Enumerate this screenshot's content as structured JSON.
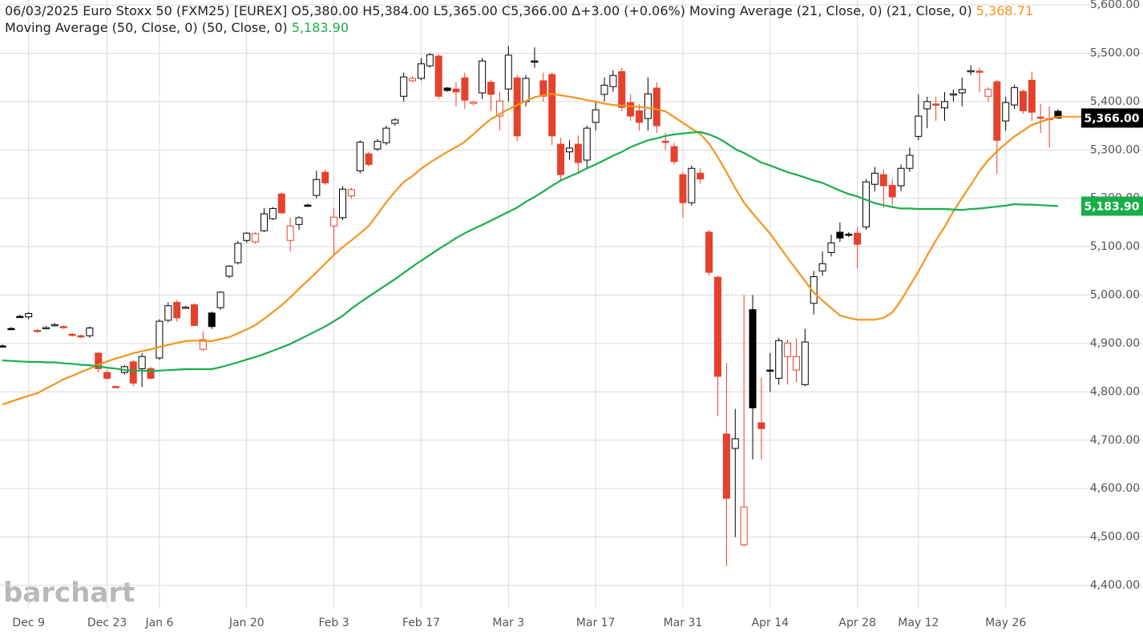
{
  "chart_data": {
    "type": "candlestick",
    "title": "06/03/2025 Euro Stoxx 50 (FXM25) [EUREX]",
    "ohlc_summary": "O5,380.00 H5,384.00 L5,365.00 C5,366.00 ∆+3.00 (+0.06%)",
    "watermark": "barchart",
    "up_color": "#000000",
    "down_color": "#e5412d",
    "last_close_label": "5,366.00",
    "grid": true,
    "categories": [
      null,
      null,
      null,
      "Dec 9",
      null,
      null,
      null,
      null,
      null,
      null,
      null,
      null,
      "Dec 23",
      null,
      null,
      null,
      null,
      null,
      "Jan 6",
      null,
      null,
      null,
      null,
      null,
      null,
      null,
      null,
      null,
      "Jan 20",
      null,
      null,
      null,
      null,
      null,
      null,
      null,
      null,
      null,
      "Feb 3",
      null,
      null,
      null,
      null,
      null,
      null,
      null,
      null,
      null,
      "Feb 17",
      null,
      null,
      null,
      null,
      null,
      null,
      null,
      null,
      null,
      "Mar 3",
      null,
      null,
      null,
      null,
      null,
      null,
      null,
      null,
      null,
      "Mar 17",
      null,
      null,
      null,
      null,
      null,
      null,
      null,
      null,
      null,
      "Mar 31",
      null,
      null,
      null,
      null,
      null,
      null,
      null,
      null,
      null,
      "Apr 14",
      null,
      null,
      null,
      null,
      null,
      null,
      null,
      null,
      null,
      "Apr 28",
      null,
      null,
      null,
      null,
      null,
      null,
      "May 12",
      null,
      null,
      null,
      null,
      null,
      null,
      null,
      null,
      null,
      "May 26",
      null,
      null,
      null,
      null,
      null,
      null
    ],
    "open": [
      4895,
      4931,
      4956,
      4955,
      4927,
      4932,
      4938,
      4935,
      4919,
      4916,
      4916,
      4880,
      4840,
      4811,
      4840,
      4862,
      4848,
      4848,
      4870,
      4948,
      4985,
      4974,
      4980,
      4888,
      4963,
      4974,
      5039,
      5067,
      5113,
      5110,
      5133,
      5158,
      5209,
      5113,
      5146,
      5186,
      5206,
      5254,
      5143,
      5160,
      5205,
      5257,
      5292,
      5302,
      5315,
      5355,
      5411,
      5443,
      5448,
      5474,
      5494,
      5428,
      5426,
      5449,
      5396,
      5418,
      5440,
      5370,
      5426,
      5449,
      5400,
      5484,
      5443,
      5456,
      5312,
      5296,
      5312,
      5279,
      5357,
      5415,
      5431,
      5462,
      5398,
      5381,
      5365,
      5428,
      5318,
      5307,
      5249,
      5191,
      5252,
      5130,
      5037,
      4713,
      4683,
      4484,
      4970,
      4736,
      4845,
      4828,
      4873,
      4845,
      4815,
      4983,
      5050,
      5088,
      5130,
      5126,
      5128,
      5141,
      5229,
      5249,
      5227,
      5226,
      5262,
      5328,
      5385,
      5395,
      5387,
      5414,
      5418,
      5462,
      5463,
      5411,
      5441,
      5360,
      5393,
      5421,
      5444,
      5368,
      5365,
      5380
    ],
    "high": [
      4898,
      4934,
      4959,
      4965,
      4930,
      4936,
      4942,
      4938,
      4922,
      4919,
      4935,
      4882,
      4845,
      4813,
      4855,
      4866,
      4880,
      4852,
      4950,
      4985,
      4990,
      4978,
      4983,
      4925,
      4966,
      5008,
      5062,
      5112,
      5130,
      5130,
      5180,
      5182,
      5212,
      5160,
      5163,
      5189,
      5257,
      5260,
      5180,
      5225,
      5222,
      5320,
      5296,
      5322,
      5350,
      5366,
      5460,
      5452,
      5490,
      5500,
      5498,
      5430,
      5440,
      5460,
      5402,
      5490,
      5445,
      5420,
      5515,
      5455,
      5455,
      5512,
      5460,
      5460,
      5325,
      5320,
      5330,
      5350,
      5400,
      5450,
      5465,
      5470,
      5415,
      5395,
      5450,
      5440,
      5335,
      5315,
      5255,
      5268,
      5262,
      5135,
      5040,
      4860,
      4765,
      5000,
      5000,
      4830,
      4880,
      4912,
      4908,
      4910,
      4930,
      5050,
      5090,
      5125,
      5150,
      5130,
      5140,
      5240,
      5265,
      5260,
      5240,
      5270,
      5305,
      5415,
      5410,
      5410,
      5420,
      5425,
      5450,
      5475,
      5470,
      5430,
      5445,
      5410,
      5435,
      5425,
      5462,
      5395,
      5390,
      5384
    ],
    "low": [
      4892,
      4928,
      4953,
      4950,
      4922,
      4929,
      4935,
      4930,
      4914,
      4911,
      4912,
      4840,
      4825,
      4808,
      4836,
      4812,
      4810,
      4826,
      4866,
      4944,
      4945,
      4972,
      4936,
      4884,
      4930,
      4970,
      5035,
      5063,
      5108,
      5106,
      5130,
      5155,
      5168,
      5090,
      5135,
      5183,
      5200,
      5228,
      5080,
      5155,
      5200,
      5252,
      5266,
      5298,
      5310,
      5350,
      5400,
      5440,
      5444,
      5470,
      5405,
      5420,
      5390,
      5385,
      5392,
      5405,
      5380,
      5340,
      5400,
      5318,
      5390,
      5470,
      5400,
      5310,
      5235,
      5280,
      5250,
      5260,
      5340,
      5400,
      5420,
      5380,
      5360,
      5340,
      5340,
      5335,
      5300,
      5270,
      5160,
      5185,
      5230,
      5040,
      4750,
      4440,
      4500,
      4480,
      4660,
      4660,
      4800,
      4815,
      4815,
      4820,
      4812,
      4960,
      5040,
      5080,
      5110,
      5120,
      5055,
      5135,
      5215,
      5180,
      5185,
      5215,
      5255,
      5320,
      5345,
      5360,
      5360,
      5400,
      5390,
      5455,
      5420,
      5400,
      5250,
      5340,
      5385,
      5375,
      5360,
      5335,
      5305,
      5365
    ],
    "close": [
      4895,
      4931,
      4956,
      4962,
      4925,
      4933,
      4939,
      4933,
      4917,
      4914,
      4932,
      4848,
      4828,
      4810,
      4852,
      4818,
      4873,
      4828,
      4946,
      4978,
      4953,
      4975,
      4937,
      4908,
      4935,
      5006,
      5060,
      5107,
      5128,
      5127,
      5168,
      5179,
      5170,
      5143,
      5160,
      5186,
      5239,
      5232,
      5161,
      5219,
      5218,
      5316,
      5270,
      5318,
      5345,
      5362,
      5451,
      5448,
      5478,
      5497,
      5411,
      5423,
      5420,
      5403,
      5399,
      5484,
      5415,
      5401,
      5496,
      5329,
      5448,
      5482,
      5411,
      5329,
      5249,
      5304,
      5274,
      5345,
      5383,
      5434,
      5454,
      5388,
      5370,
      5357,
      5416,
      5350,
      5316,
      5276,
      5191,
      5262,
      5240,
      5047,
      4832,
      4580,
      4703,
      4562,
      4767,
      4724,
      4843,
      4906,
      4901,
      4873,
      4903,
      5038,
      5065,
      5108,
      5118,
      5124,
      5105,
      5234,
      5252,
      5226,
      5203,
      5262,
      5289,
      5370,
      5400,
      5393,
      5400,
      5416,
      5425,
      5464,
      5461,
      5425,
      5320,
      5398,
      5429,
      5381,
      5378,
      5367,
      5363,
      5366
    ],
    "series": [
      {
        "name": "Moving Average (21, Close, 0)  (21, Close, 0)",
        "color": "#f7931e",
        "last_label": "5,368.71",
        "values": [
          4774,
          4780,
          4786,
          4792,
          4797,
          4807,
          4816,
          4826,
          4833,
          4841,
          4848,
          4856,
          4863,
          4869,
          4874,
          4880,
          4884,
          4888,
          4893,
          4897,
          4901,
          4905,
          4906,
          4905,
          4905,
          4909,
          4913,
          4921,
          4929,
          4938,
          4951,
          4965,
          4979,
          4995,
          5013,
          5030,
          5047,
          5065,
          5083,
          5099,
          5113,
          5128,
          5143,
          5167,
          5192,
          5214,
          5234,
          5246,
          5261,
          5274,
          5285,
          5296,
          5306,
          5317,
          5333,
          5349,
          5364,
          5374,
          5384,
          5393,
          5401,
          5409,
          5413,
          5416,
          5413,
          5410,
          5407,
          5403,
          5400,
          5396,
          5393,
          5392,
          5390,
          5389,
          5387,
          5384,
          5380,
          5368,
          5356,
          5344,
          5333,
          5313,
          5285,
          5254,
          5221,
          5191,
          5169,
          5148,
          5127,
          5102,
          5077,
          5053,
          5029,
          5005,
          4989,
          4973,
          4958,
          4953,
          4949,
          4949,
          4949,
          4953,
          4964,
          4989,
          5019,
          5049,
          5082,
          5113,
          5141,
          5173,
          5201,
          5228,
          5256,
          5279,
          5297,
          5313,
          5328,
          5340,
          5352,
          5358,
          5364,
          5368.71
        ]
      },
      {
        "name": "Moving Average (50, Close, 0)  (50, Close, 0)",
        "color": "#1aae4a",
        "last_label": "5,183.90",
        "values": [
          4865,
          4864,
          4863,
          4862,
          4862,
          4861,
          4861,
          4859,
          4858,
          4856,
          4855,
          4853,
          4850,
          4848,
          4845,
          4844,
          4844,
          4843,
          4844,
          4845,
          4846,
          4847,
          4847,
          4847,
          4847,
          4851,
          4856,
          4861,
          4867,
          4872,
          4878,
          4885,
          4892,
          4899,
          4908,
          4917,
          4926,
          4935,
          4946,
          4957,
          4972,
          4985,
          4997,
          5009,
          5021,
          5033,
          5046,
          5059,
          5071,
          5083,
          5095,
          5106,
          5118,
          5128,
          5137,
          5145,
          5154,
          5163,
          5172,
          5181,
          5193,
          5203,
          5214,
          5226,
          5237,
          5245,
          5253,
          5262,
          5270,
          5279,
          5288,
          5296,
          5306,
          5313,
          5320,
          5324,
          5329,
          5332,
          5334,
          5336,
          5337,
          5332,
          5325,
          5314,
          5302,
          5294,
          5284,
          5274,
          5268,
          5261,
          5254,
          5249,
          5243,
          5237,
          5232,
          5224,
          5216,
          5209,
          5204,
          5197,
          5190,
          5186,
          5182,
          5179,
          5179,
          5178,
          5178,
          5178,
          5178,
          5177,
          5176,
          5178,
          5179,
          5181,
          5183,
          5185,
          5188,
          5187,
          5187,
          5186,
          5185,
          5183.9
        ]
      }
    ],
    "ylim": [
      4352,
      5610
    ],
    "yticks": [
      {
        "value": 4400,
        "label": "4,400.00"
      },
      {
        "value": 4500,
        "label": "4,500.00"
      },
      {
        "value": 4600,
        "label": "4,600.00"
      },
      {
        "value": 4700,
        "label": "4,700.00"
      },
      {
        "value": 4800,
        "label": "4,800.00"
      },
      {
        "value": 4900,
        "label": "4,900.00"
      },
      {
        "value": 5000,
        "label": "5,000.00"
      },
      {
        "value": 5100,
        "label": "5,100.00"
      },
      {
        "value": 5200,
        "label": "5,200.00"
      },
      {
        "value": 5300,
        "label": "5,300.00"
      },
      {
        "value": 5400,
        "label": "5,400.00"
      },
      {
        "value": 5500,
        "label": "5,500.00"
      },
      {
        "value": 5600,
        "label": "5,600.00"
      }
    ]
  }
}
